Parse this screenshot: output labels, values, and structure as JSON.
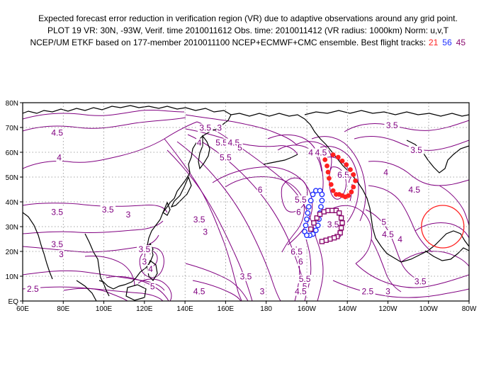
{
  "header": {
    "line1": "Expected forecast error reduction in verification region (VR) due to adaptive observations around any grid point.",
    "line2": "PLOT 19 VR: 30N, -93W, Verif. time 2010011612 Obs. time: 2010011412 (VR radius: 1000km) Norm: u,v,T",
    "line3_prefix": "NCEP/UM ETKF based on 177-member 2010011100 NCEP+ECMWF+CMC ensemble. Best flight tracks:",
    "track_a": "21",
    "track_b": "56",
    "track_c": "45"
  },
  "colors": {
    "contour": "#800080",
    "track_a": "#ff2020",
    "track_b": "#2030ff",
    "track_c": "#8a0a6e",
    "coast": "#000000",
    "verification_circle": "#ff2020"
  },
  "map": {
    "lon_range_east": [
      60,
      280
    ],
    "lat_range": [
      0,
      80
    ],
    "x_ticks": [
      "60E",
      "80E",
      "100E",
      "120E",
      "140E",
      "160E",
      "180",
      "160W",
      "140W",
      "120W",
      "100W",
      "80W"
    ],
    "y_ticks": [
      "80N",
      "70N",
      "60N",
      "50N",
      "40N",
      "30N",
      "20N",
      "10N",
      "EQ"
    ],
    "verification_region": {
      "lat": 30,
      "lon": -93
    }
  },
  "contour_labels": [
    {
      "text": "4.5",
      "lon": 77,
      "lat": 67
    },
    {
      "text": "4",
      "lon": 78,
      "lat": 57
    },
    {
      "text": "3.5",
      "lon": 77,
      "lat": 35
    },
    {
      "text": "3.5",
      "lon": 102,
      "lat": 36
    },
    {
      "text": "3",
      "lon": 112,
      "lat": 34
    },
    {
      "text": "3.5",
      "lon": 77,
      "lat": 22
    },
    {
      "text": "3",
      "lon": 79,
      "lat": 18
    },
    {
      "text": "2.5",
      "lon": 65,
      "lat": 4
    },
    {
      "text": "3.5",
      "lon": 120,
      "lat": 20
    },
    {
      "text": "3",
      "lon": 120,
      "lat": 15
    },
    {
      "text": "4",
      "lon": 123,
      "lat": 12
    },
    {
      "text": "5",
      "lon": 124,
      "lat": 5
    },
    {
      "text": "3.5",
      "lon": 150,
      "lat": 69
    },
    {
      "text": "3",
      "lon": 157,
      "lat": 69
    },
    {
      "text": "4",
      "lon": 147,
      "lat": 63
    },
    {
      "text": "5.5",
      "lon": 158,
      "lat": 63
    },
    {
      "text": "4.5",
      "lon": 164,
      "lat": 63
    },
    {
      "text": "5",
      "lon": 167,
      "lat": 61
    },
    {
      "text": "5.5",
      "lon": 160,
      "lat": 57
    },
    {
      "text": "3.5",
      "lon": 147,
      "lat": 32
    },
    {
      "text": "3",
      "lon": 150,
      "lat": 27
    },
    {
      "text": "6",
      "lon": 177,
      "lat": 44
    },
    {
      "text": "4",
      "lon": 202,
      "lat": 59
    },
    {
      "text": "4.5",
      "lon": 207,
      "lat": 59
    },
    {
      "text": "5.5",
      "lon": 197,
      "lat": 40
    },
    {
      "text": "6",
      "lon": 196,
      "lat": 35
    },
    {
      "text": "6.5",
      "lon": 218,
      "lat": 50
    },
    {
      "text": "7",
      "lon": 221,
      "lat": 48
    },
    {
      "text": "6.5",
      "lon": 195,
      "lat": 19
    },
    {
      "text": "6",
      "lon": 197,
      "lat": 15
    },
    {
      "text": "3.5",
      "lon": 213,
      "lat": 30
    },
    {
      "text": "3",
      "lon": 216,
      "lat": 26
    },
    {
      "text": "3.5",
      "lon": 242,
      "lat": 70
    },
    {
      "text": "3.5",
      "lon": 254,
      "lat": 60
    },
    {
      "text": "4",
      "lon": 239,
      "lat": 51
    },
    {
      "text": "4.5",
      "lon": 253,
      "lat": 44
    },
    {
      "text": "5",
      "lon": 238,
      "lat": 31
    },
    {
      "text": "4.5",
      "lon": 240,
      "lat": 26
    },
    {
      "text": "4",
      "lon": 246,
      "lat": 24
    },
    {
      "text": "3.5",
      "lon": 170,
      "lat": 9
    },
    {
      "text": "3",
      "lon": 178,
      "lat": 3
    },
    {
      "text": "4.5",
      "lon": 147,
      "lat": 3
    },
    {
      "text": "5.5",
      "lon": 199,
      "lat": 8
    },
    {
      "text": "5",
      "lon": 199,
      "lat": 5
    },
    {
      "text": "4.5",
      "lon": 197,
      "lat": 3
    },
    {
      "text": "2.5",
      "lon": 230,
      "lat": 3
    },
    {
      "text": "3",
      "lon": 240,
      "lat": 3
    },
    {
      "text": "3.5",
      "lon": 256,
      "lat": 7
    }
  ],
  "flight_tracks": [
    {
      "id": "21",
      "color": "#ff2020",
      "marker": "circle-filled",
      "points": [
        [
          209,
          57
        ],
        [
          210,
          54.5
        ],
        [
          210.5,
          52
        ],
        [
          211,
          49.5
        ],
        [
          212,
          47
        ],
        [
          213,
          44.5
        ],
        [
          214.5,
          43
        ],
        [
          216,
          43
        ],
        [
          217.5,
          42.5
        ],
        [
          219,
          42
        ],
        [
          220.5,
          42.5
        ],
        [
          222,
          44
        ],
        [
          223,
          46
        ],
        [
          224,
          48.5
        ],
        [
          223,
          51
        ],
        [
          221.5,
          53
        ],
        [
          219.5,
          55
        ],
        [
          217.5,
          56.5
        ],
        [
          215.5,
          58
        ],
        [
          213,
          59
        ]
      ]
    },
    {
      "id": "56",
      "color": "#2030ff",
      "marker": "circle-open",
      "points": [
        [
          199,
          28
        ],
        [
          199.5,
          30.5
        ],
        [
          200,
          33
        ],
        [
          200.5,
          35.5
        ],
        [
          201,
          38
        ],
        [
          202,
          40.5
        ],
        [
          203,
          43
        ],
        [
          204.5,
          44.5
        ],
        [
          206.5,
          44.5
        ],
        [
          207.5,
          43
        ],
        [
          207.5,
          40.5
        ],
        [
          207,
          38
        ],
        [
          206.5,
          35.5
        ],
        [
          206,
          33
        ],
        [
          205.5,
          30.5
        ],
        [
          204.5,
          28.5
        ],
        [
          203,
          27
        ],
        [
          201.5,
          26.5
        ],
        [
          200,
          26.5
        ]
      ]
    },
    {
      "id": "45",
      "color": "#8a0a6e",
      "marker": "square-open",
      "points": [
        [
          202,
          29
        ],
        [
          203.5,
          31.5
        ],
        [
          205,
          33.5
        ],
        [
          206.5,
          35
        ],
        [
          208.5,
          36
        ],
        [
          210.5,
          36.5
        ],
        [
          212.5,
          36.5
        ],
        [
          214.5,
          36.5
        ],
        [
          216,
          35.5
        ],
        [
          217,
          33.5
        ],
        [
          217.5,
          31.5
        ],
        [
          217,
          29.5
        ],
        [
          216.5,
          27.5
        ],
        [
          215,
          26
        ],
        [
          213.5,
          25.5
        ],
        [
          211.5,
          25
        ],
        [
          209.5,
          24.5
        ],
        [
          207.5,
          24
        ]
      ]
    }
  ]
}
